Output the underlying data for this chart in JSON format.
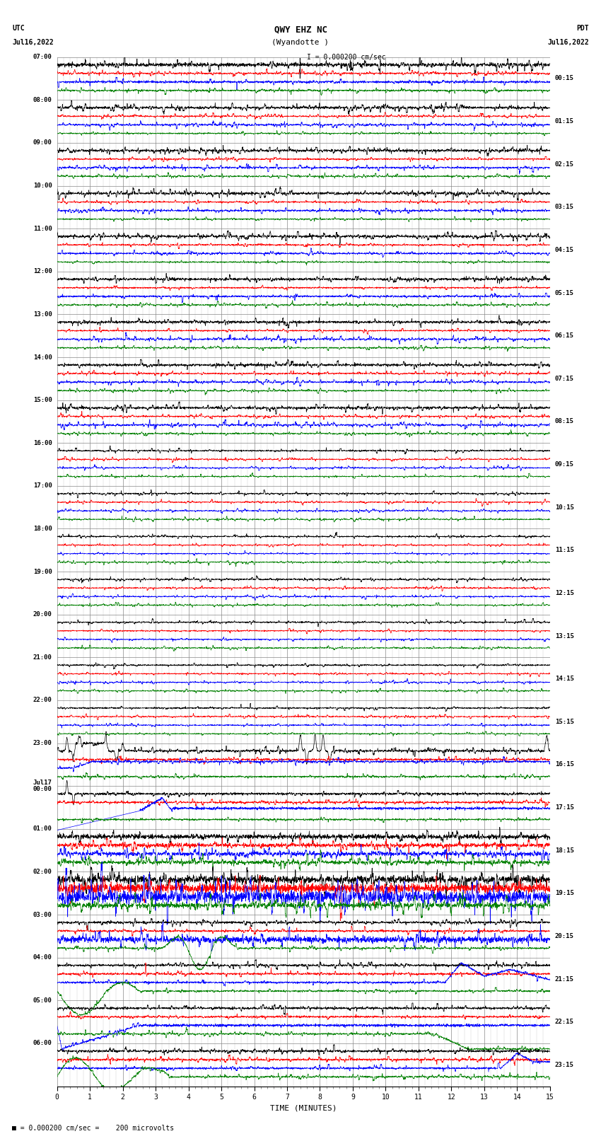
{
  "title": "QWY EHZ NC",
  "subtitle": "(Wyandotte )",
  "scale_label": "I = 0.000200 cm/sec",
  "xlabel": "TIME (MINUTES)",
  "left_header_line1": "UTC",
  "left_header_line2": "Jul16,2022",
  "right_header_line1": "PDT",
  "right_header_line2": "Jul16,2022",
  "left_times": [
    "07:00",
    "08:00",
    "09:00",
    "10:00",
    "11:00",
    "12:00",
    "13:00",
    "14:00",
    "15:00",
    "16:00",
    "17:00",
    "18:00",
    "19:00",
    "20:00",
    "21:00",
    "22:00",
    "23:00",
    "Jul17",
    "00:00",
    "01:00",
    "02:00",
    "03:00",
    "04:00",
    "05:00",
    "06:00"
  ],
  "jul17_row": 17,
  "right_times": [
    "00:15",
    "01:15",
    "02:15",
    "03:15",
    "04:15",
    "05:15",
    "06:15",
    "07:15",
    "08:15",
    "09:15",
    "10:15",
    "11:15",
    "12:15",
    "13:15",
    "14:15",
    "15:15",
    "16:15",
    "17:15",
    "18:15",
    "19:15",
    "20:15",
    "21:15",
    "22:15",
    "23:15"
  ],
  "n_rows": 24,
  "n_traces_per_row": 4,
  "trace_colors": [
    "black",
    "red",
    "blue",
    "green"
  ],
  "xmin": 0,
  "xmax": 15,
  "bg_color": "#ffffff",
  "grid_major_color": "#999999",
  "grid_minor_color": "#cccccc",
  "fig_width": 8.5,
  "fig_height": 16.13,
  "dpi": 100
}
